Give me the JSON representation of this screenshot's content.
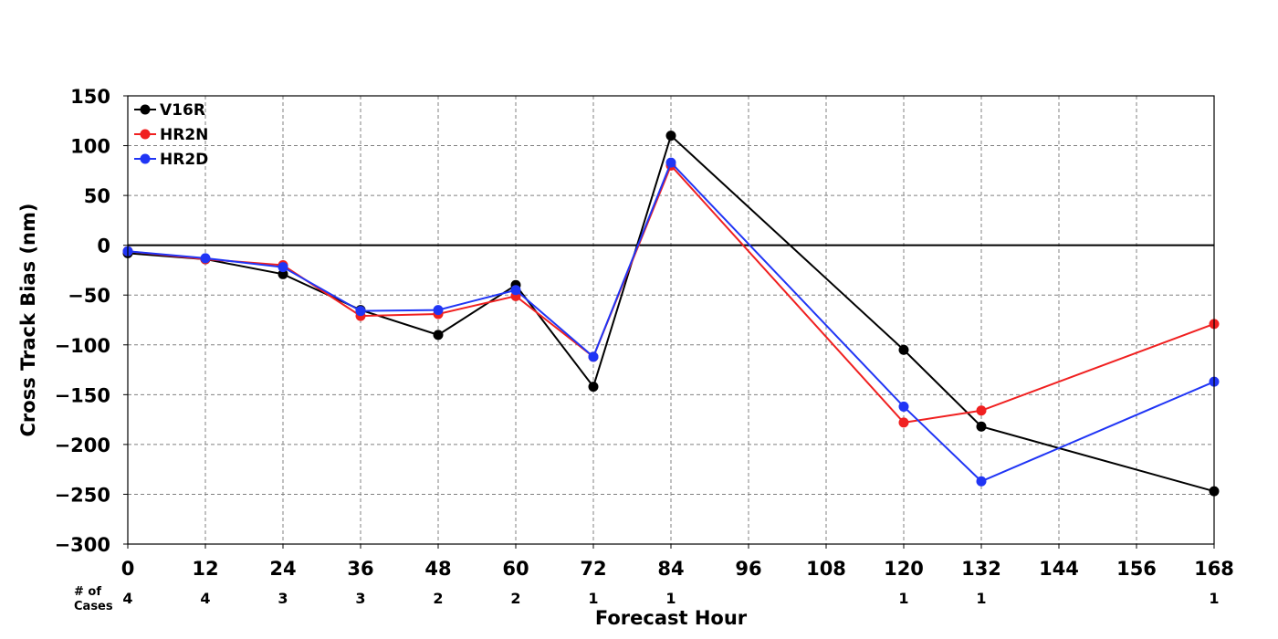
{
  "chart_data": {
    "type": "line",
    "title": "",
    "xlabel": "Forecast Hour",
    "ylabel": "Cross Track Bias (nm)",
    "xlim": [
      0,
      168
    ],
    "ylim": [
      -300,
      150
    ],
    "xticks": [
      0,
      12,
      24,
      36,
      48,
      60,
      72,
      84,
      96,
      108,
      120,
      132,
      144,
      156,
      168
    ],
    "xtick_labels": [
      "0",
      "12",
      "24",
      "36",
      "48",
      "60",
      "72",
      "84",
      "96",
      "108",
      "120",
      "132",
      "144",
      "156",
      "168"
    ],
    "yticks": [
      -300,
      -250,
      -200,
      -150,
      -100,
      -50,
      0,
      50,
      100,
      150
    ],
    "ytick_labels": [
      "−300",
      "−250",
      "−200",
      "−150",
      "−100",
      "−50",
      "0",
      "50",
      "100",
      "150"
    ],
    "grid": true,
    "zero_line": true,
    "legend_position": "top-left",
    "series": [
      {
        "name": "V16R",
        "color": "#000000",
        "x": [
          0,
          12,
          24,
          36,
          48,
          60,
          72,
          84,
          120,
          132,
          168
        ],
        "y": [
          -8,
          -14,
          -29,
          -65,
          -90,
          -40,
          -142,
          110,
          -105,
          -182,
          -247
        ]
      },
      {
        "name": "HR2N",
        "color": "#f02020",
        "x": [
          0,
          12,
          24,
          36,
          48,
          60,
          72,
          84,
          120,
          132,
          168
        ],
        "y": [
          -6,
          -14,
          -20,
          -71,
          -69,
          -51,
          -112,
          80,
          -178,
          -166,
          -79
        ]
      },
      {
        "name": "HR2D",
        "color": "#2035f5",
        "x": [
          0,
          12,
          24,
          36,
          48,
          60,
          72,
          84,
          120,
          132,
          168
        ],
        "y": [
          -6,
          -13,
          -22,
          -66,
          -65,
          -45,
          -112,
          83,
          -162,
          -237,
          -137
        ]
      }
    ],
    "cases": {
      "label_line1": "# of",
      "label_line2": "Cases",
      "x": [
        0,
        12,
        24,
        36,
        48,
        60,
        72,
        84,
        120,
        132,
        168
      ],
      "counts": [
        "4",
        "4",
        "3",
        "3",
        "2",
        "2",
        "1",
        "1",
        "1",
        "1",
        "1"
      ]
    }
  }
}
